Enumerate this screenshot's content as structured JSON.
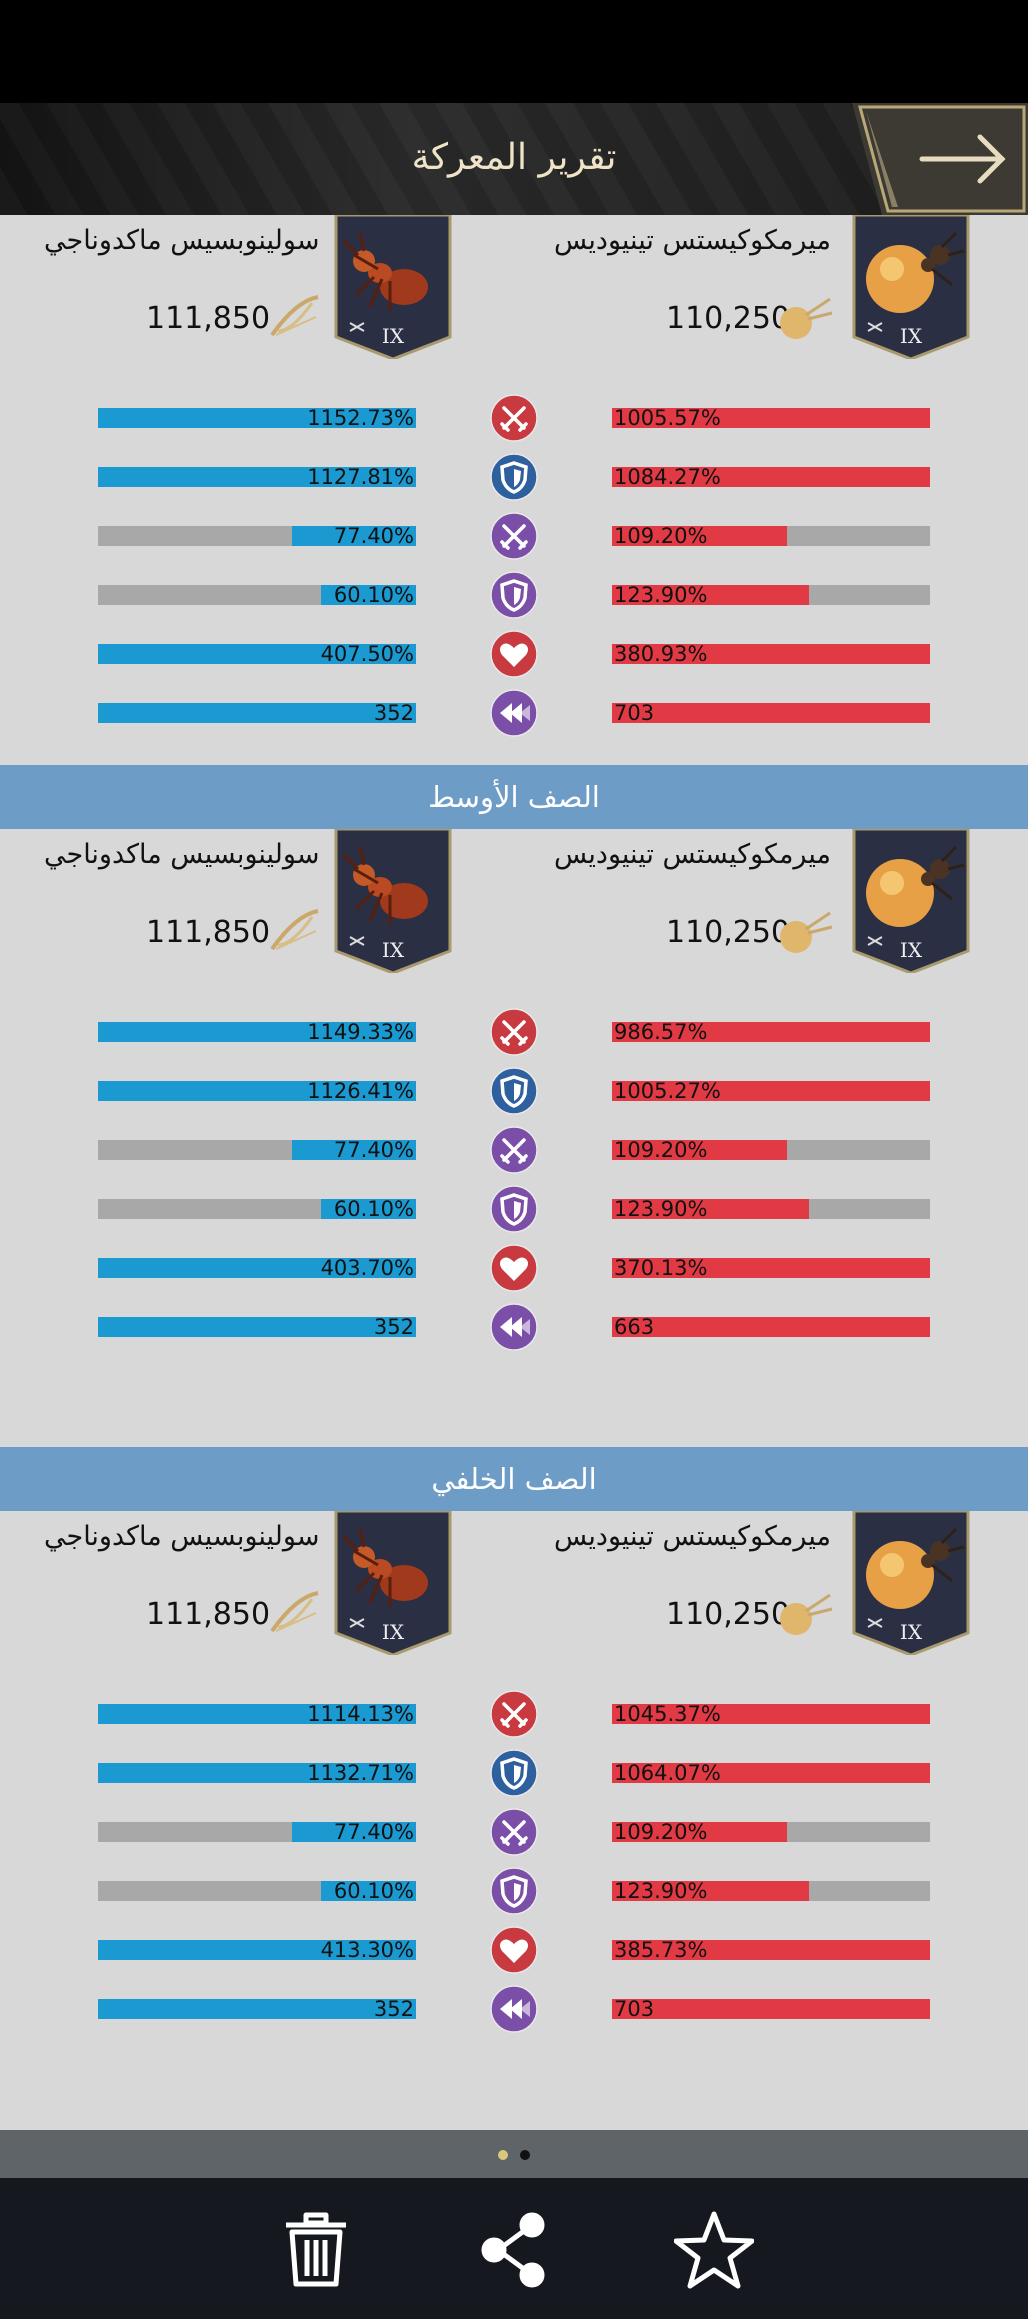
{
  "header": {
    "title": "تقرير المعركة"
  },
  "row_labels": {
    "middle": "الصف الأوسط",
    "back": "الصف الخلفي"
  },
  "sections": [
    {
      "left": {
        "name": "سولينوبسيس ماكدوناجي",
        "power": "111,850",
        "rank": "IX"
      },
      "right": {
        "name": "ميرمكوكيستس تينيوديس",
        "power": "110,250",
        "rank": "IX"
      },
      "stats": [
        {
          "icon": "attack-icon",
          "left": "1152.73%",
          "left_fill": 1.0,
          "right": "1005.57%",
          "right_fill": 1.0
        },
        {
          "icon": "defense-icon",
          "left": "1127.81%",
          "left_fill": 1.0,
          "right": "1084.27%",
          "right_fill": 1.0
        },
        {
          "icon": "attack-bonus-icon",
          "left": "77.40%",
          "left_fill": 0.39,
          "right": "109.20%",
          "right_fill": 0.55
        },
        {
          "icon": "defense-bonus-icon",
          "left": "60.10%",
          "left_fill": 0.3,
          "right": "123.90%",
          "right_fill": 0.62
        },
        {
          "icon": "health-icon",
          "left": "407.50%",
          "left_fill": 1.0,
          "right": "380.93%",
          "right_fill": 1.0
        },
        {
          "icon": "speed-icon",
          "left": "352",
          "left_fill": 1.0,
          "right": "703",
          "right_fill": 1.0
        }
      ]
    },
    {
      "left": {
        "name": "سولينوبسيس ماكدوناجي",
        "power": "111,850",
        "rank": "IX"
      },
      "right": {
        "name": "ميرمكوكيستس تينيوديس",
        "power": "110,250",
        "rank": "IX"
      },
      "stats": [
        {
          "icon": "attack-icon",
          "left": "1149.33%",
          "left_fill": 1.0,
          "right": "986.57%",
          "right_fill": 1.0
        },
        {
          "icon": "defense-icon",
          "left": "1126.41%",
          "left_fill": 1.0,
          "right": "1005.27%",
          "right_fill": 1.0
        },
        {
          "icon": "attack-bonus-icon",
          "left": "77.40%",
          "left_fill": 0.39,
          "right": "109.20%",
          "right_fill": 0.55
        },
        {
          "icon": "defense-bonus-icon",
          "left": "60.10%",
          "left_fill": 0.3,
          "right": "123.90%",
          "right_fill": 0.62
        },
        {
          "icon": "health-icon",
          "left": "403.70%",
          "left_fill": 1.0,
          "right": "370.13%",
          "right_fill": 1.0
        },
        {
          "icon": "speed-icon",
          "left": "352",
          "left_fill": 1.0,
          "right": "663",
          "right_fill": 1.0
        }
      ]
    },
    {
      "left": {
        "name": "سولينوبسيس ماكدوناجي",
        "power": "111,850",
        "rank": "IX"
      },
      "right": {
        "name": "ميرمكوكيستس تينيوديس",
        "power": "110,250",
        "rank": "IX"
      },
      "stats": [
        {
          "icon": "attack-icon",
          "left": "1114.13%",
          "left_fill": 1.0,
          "right": "1045.37%",
          "right_fill": 1.0
        },
        {
          "icon": "defense-icon",
          "left": "1132.71%",
          "left_fill": 1.0,
          "right": "1064.07%",
          "right_fill": 1.0
        },
        {
          "icon": "attack-bonus-icon",
          "left": "77.40%",
          "left_fill": 0.39,
          "right": "109.20%",
          "right_fill": 0.55
        },
        {
          "icon": "defense-bonus-icon",
          "left": "60.10%",
          "left_fill": 0.3,
          "right": "123.90%",
          "right_fill": 0.62
        },
        {
          "icon": "health-icon",
          "left": "413.30%",
          "left_fill": 1.0,
          "right": "385.73%",
          "right_fill": 1.0
        },
        {
          "icon": "speed-icon",
          "left": "352",
          "left_fill": 1.0,
          "right": "703",
          "right_fill": 1.0
        }
      ]
    }
  ],
  "pager": {
    "active": 0,
    "count": 2
  },
  "toolbar": {
    "icons": [
      "trash-icon",
      "share-icon",
      "star-icon"
    ]
  },
  "colors": {
    "left_bar": "#1b9ad2",
    "right_bar": "#e23a45",
    "bar_track": "#a8a8a8",
    "row_header": "#6d9dc6",
    "attack_icon_bg": "#c83a3f",
    "defense_icon_bg": "#2e5f9e",
    "bonus_icon_bg": "#7b4fa8",
    "health_icon_bg": "#c83a3f",
    "speed_icon_bg": "#7b4fa8"
  }
}
